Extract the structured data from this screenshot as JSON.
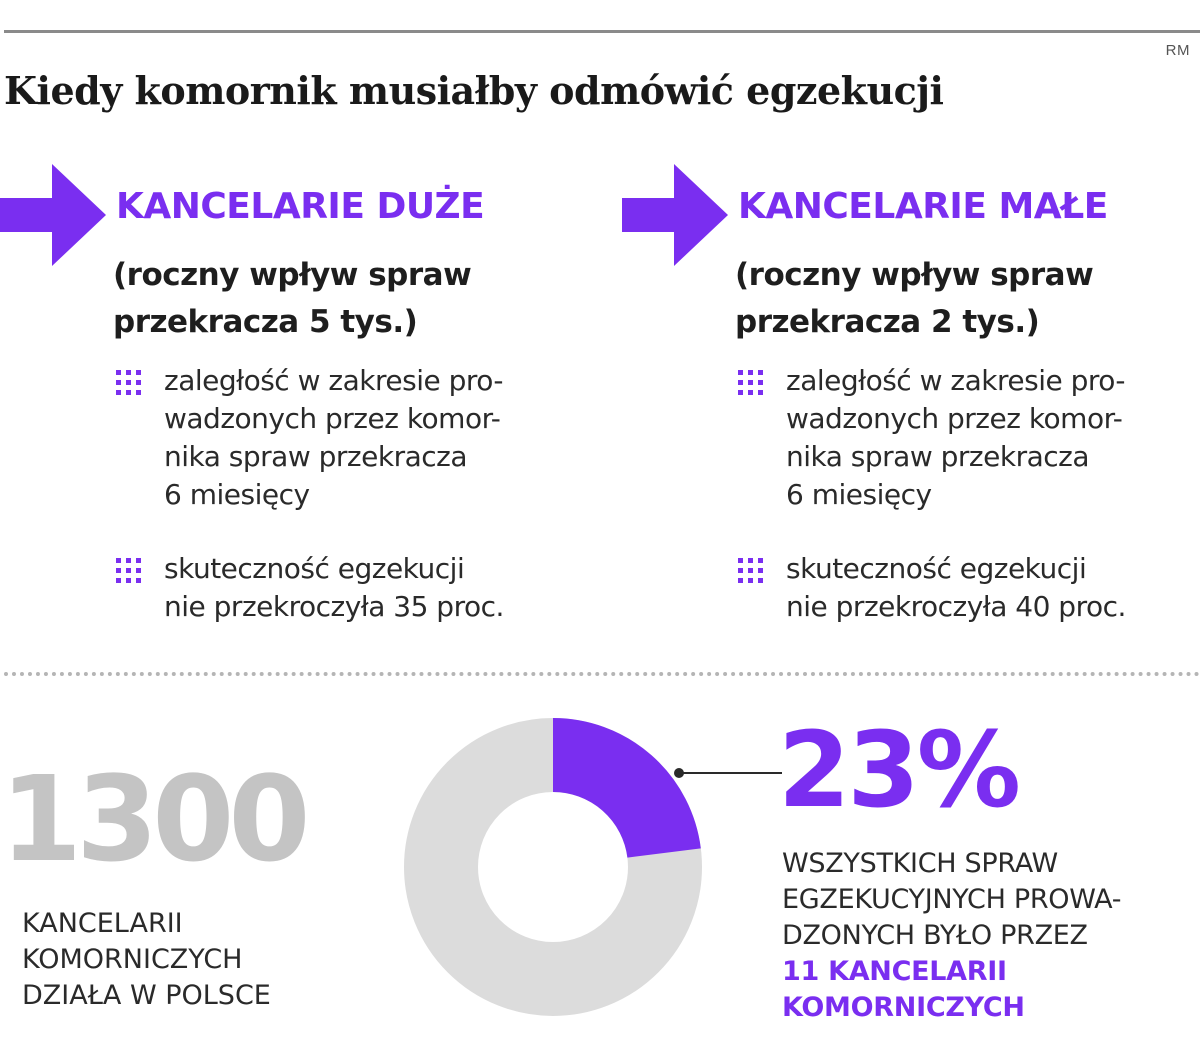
{
  "header": {
    "credit": "RM",
    "title": "Kiedy komornik musiałby odmówić egzekucji"
  },
  "columns": [
    {
      "title": "KANCELARIE DUŻE",
      "subtitle": "(roczny wpływ spraw przekracza 5 tys.)",
      "bullets": [
        "zaległość w zakresie pro-\nwadzonych przez komor-\nnika spraw przekracza\n6 miesięcy",
        "skuteczność egzekucji\nnie przekroczyła 35 proc."
      ]
    },
    {
      "title": "KANCELARIE MAŁE",
      "subtitle": "(roczny wpływ spraw przekracza 2 tys.)",
      "bullets": [
        "zaległość w zakresie pro-\nwadzonych przez komor-\nnika spraw przekracza\n6 miesięcy",
        "skuteczność egzekucji\nnie przekroczyła 40 proc."
      ]
    }
  ],
  "stats": {
    "count_value": "1300",
    "count_caption": "KANCELARII\nKOMORNICZYCH\nDZIAŁA W POLSCE",
    "share_value": "23%",
    "share_fraction": 0.23,
    "share_caption": "WSZYSTKICH SPRAW\nEGZEKUCYJNYCH PROWA-\nDZONYCH BYŁO PRZEZ",
    "share_highlight": "11 KANCELARII\nKOMORNICZYCH"
  },
  "colors": {
    "accent": "#7a2ef0",
    "donut_rest": "#dcdcdc",
    "big_number": "#c4c4c4",
    "text": "#1e1e1e"
  },
  "icons": {
    "arrow": "arrow-right-icon",
    "bullet": "dot-grid-icon"
  }
}
